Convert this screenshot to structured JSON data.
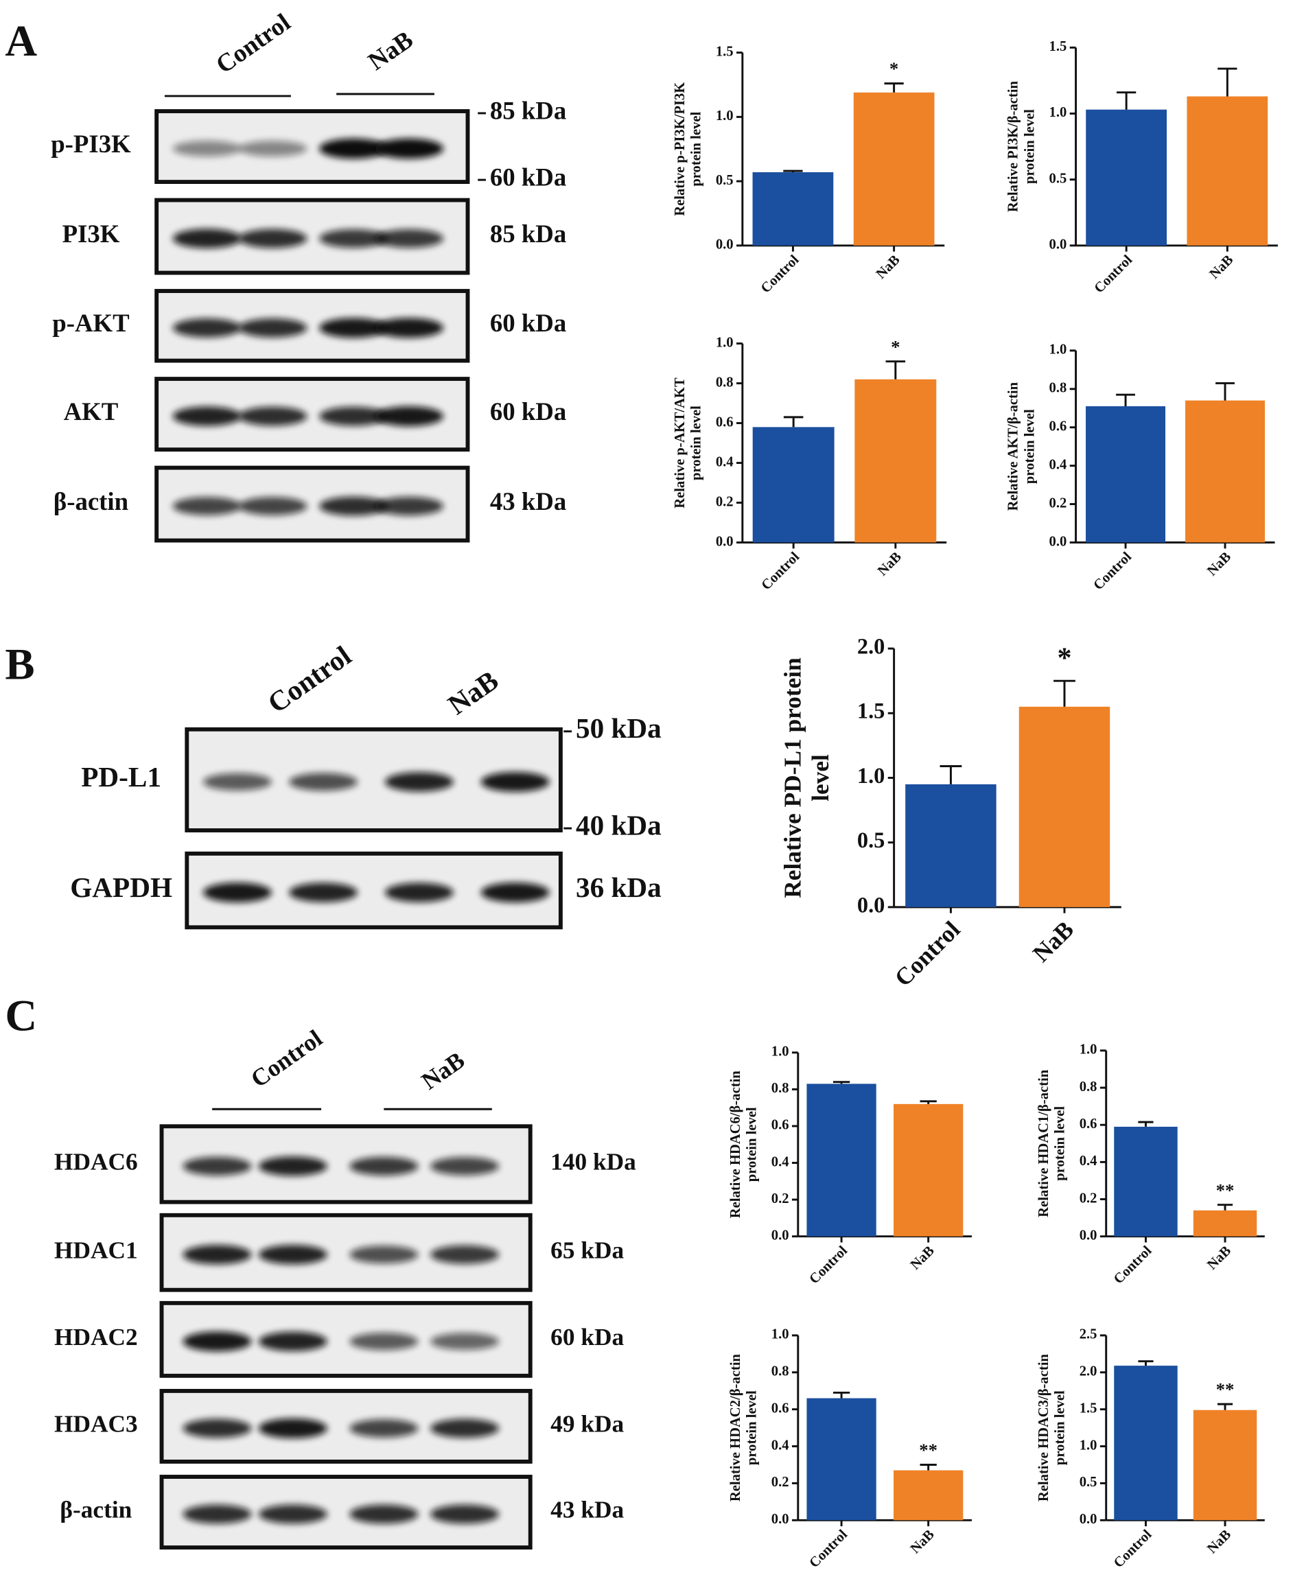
{
  "panels": [
    {
      "letter": "A",
      "groups": [
        "Control",
        "NaB"
      ],
      "blots": [
        {
          "label": "p-PI3K",
          "markers": [
            "85 kDa",
            "60 kDa"
          ]
        },
        {
          "label": "PI3K",
          "markers": [
            "85 kDa"
          ]
        },
        {
          "label": "p-AKT",
          "markers": [
            "60 kDa"
          ]
        },
        {
          "label": "AKT",
          "markers": [
            "60 kDa"
          ]
        },
        {
          "label": "β-actin",
          "markers": [
            "43 kDa"
          ]
        }
      ]
    },
    {
      "letter": "B",
      "groups": [
        "Control",
        "NaB"
      ],
      "blots": [
        {
          "label": "PD-L1",
          "markers": [
            "50 kDa",
            "40 kDa"
          ]
        },
        {
          "label": "GAPDH",
          "markers": [
            "36 kDa"
          ]
        }
      ]
    },
    {
      "letter": "C",
      "groups": [
        "Control",
        "NaB"
      ],
      "blots": [
        {
          "label": "HDAC6",
          "markers": [
            "140 kDa"
          ]
        },
        {
          "label": "HDAC1",
          "markers": [
            "65 kDa"
          ]
        },
        {
          "label": "HDAC2",
          "markers": [
            "60 kDa"
          ]
        },
        {
          "label": "HDAC3",
          "markers": [
            "49 kDa"
          ]
        },
        {
          "label": "β-actin",
          "markers": [
            "43 kDa"
          ]
        }
      ]
    }
  ],
  "chart_data": [
    {
      "type": "bar",
      "ylabel": [
        "Relative p-PI3K/PI3K",
        "protein level"
      ],
      "categories": [
        "Control",
        "NaB"
      ],
      "values": [
        0.57,
        1.19
      ],
      "errors": [
        0.01,
        0.07
      ],
      "colors": [
        "#1b4f9f",
        "#ef8227"
      ],
      "ylim": [
        0,
        1.5
      ],
      "yticks": [
        {
          "value": 0,
          "label": "0.0"
        },
        {
          "value": 0.5,
          "label": "0.5"
        },
        {
          "value": 1,
          "label": "1.0"
        },
        {
          "value": 1.5,
          "label": "1.5"
        }
      ],
      "annotations": [
        {
          "index": 1,
          "text": "*"
        }
      ]
    },
    {
      "type": "bar",
      "ylabel": [
        "Relative PI3K/β-actin",
        "protein level"
      ],
      "categories": [
        "Control",
        "NaB"
      ],
      "values": [
        1.03,
        1.13
      ],
      "errors": [
        0.13,
        0.21
      ],
      "colors": [
        "#1b4f9f",
        "#ef8227"
      ],
      "ylim": [
        0,
        1.5
      ],
      "yticks": [
        {
          "value": 0,
          "label": "0.0"
        },
        {
          "value": 0.5,
          "label": "0.5"
        },
        {
          "value": 1,
          "label": "1.0"
        },
        {
          "value": 1.5,
          "label": "1.5"
        }
      ]
    },
    {
      "type": "bar",
      "ylabel": [
        "Relative p-AKT/AKT",
        "protein level"
      ],
      "categories": [
        "Control",
        "NaB"
      ],
      "values": [
        0.58,
        0.82
      ],
      "errors": [
        0.05,
        0.09
      ],
      "colors": [
        "#1b4f9f",
        "#ef8227"
      ],
      "ylim": [
        0,
        1
      ],
      "yticks": [
        {
          "value": 0,
          "label": "0.0"
        },
        {
          "value": 0.2,
          "label": "0.2"
        },
        {
          "value": 0.4,
          "label": "0.4"
        },
        {
          "value": 0.6,
          "label": "0.6"
        },
        {
          "value": 0.8,
          "label": "0.8"
        },
        {
          "value": 1,
          "label": "1.0"
        }
      ],
      "annotations": [
        {
          "index": 1,
          "text": "*"
        }
      ]
    },
    {
      "type": "bar",
      "ylabel": [
        "Relative AKT/β-actin",
        "protein level"
      ],
      "categories": [
        "Control",
        "NaB"
      ],
      "values": [
        0.71,
        0.74
      ],
      "errors": [
        0.06,
        0.09
      ],
      "colors": [
        "#1b4f9f",
        "#ef8227"
      ],
      "ylim": [
        0,
        1
      ],
      "yticks": [
        {
          "value": 0,
          "label": "0.0"
        },
        {
          "value": 0.2,
          "label": "0.2"
        },
        {
          "value": 0.4,
          "label": "0.4"
        },
        {
          "value": 0.6,
          "label": "0.6"
        },
        {
          "value": 0.8,
          "label": "0.8"
        },
        {
          "value": 1,
          "label": "1.0"
        }
      ]
    },
    {
      "type": "bar",
      "ylabel": [
        "Relative  PD-L1 protein",
        "level"
      ],
      "categories": [
        "Control",
        "NaB"
      ],
      "values": [
        0.95,
        1.55
      ],
      "errors": [
        0.14,
        0.2
      ],
      "colors": [
        "#1b4f9f",
        "#ef8227"
      ],
      "ylim": [
        0,
        2
      ],
      "yticks": [
        {
          "value": 0,
          "label": "0.0"
        },
        {
          "value": 0.5,
          "label": "0.5"
        },
        {
          "value": 1,
          "label": "1.0"
        },
        {
          "value": 1.5,
          "label": "1.5"
        },
        {
          "value": 2,
          "label": "2.0"
        }
      ],
      "annotations": [
        {
          "index": 1,
          "text": "*"
        }
      ]
    },
    {
      "type": "bar",
      "ylabel": [
        "Relative HDAC6/β-actin",
        "protein level"
      ],
      "categories": [
        "Control",
        "NaB"
      ],
      "values": [
        0.83,
        0.72
      ],
      "errors": [
        0.01,
        0.015
      ],
      "colors": [
        "#1b4f9f",
        "#ef8227"
      ],
      "ylim": [
        0,
        1
      ],
      "yticks": [
        {
          "value": 0,
          "label": "0.0"
        },
        {
          "value": 0.2,
          "label": "0.2"
        },
        {
          "value": 0.4,
          "label": "0.4"
        },
        {
          "value": 0.6,
          "label": "0.6"
        },
        {
          "value": 0.8,
          "label": "0.8"
        },
        {
          "value": 1,
          "label": "1.0"
        }
      ]
    },
    {
      "type": "bar",
      "ylabel": [
        "Relative HDAC1/β-actin",
        "protein level"
      ],
      "categories": [
        "Control",
        "NaB"
      ],
      "values": [
        0.59,
        0.14
      ],
      "errors": [
        0.025,
        0.03
      ],
      "colors": [
        "#1b4f9f",
        "#ef8227"
      ],
      "ylim": [
        0,
        1
      ],
      "yticks": [
        {
          "value": 0,
          "label": "0.0"
        },
        {
          "value": 0.2,
          "label": "0.2"
        },
        {
          "value": 0.4,
          "label": "0.4"
        },
        {
          "value": 0.6,
          "label": "0.6"
        },
        {
          "value": 0.8,
          "label": "0.8"
        },
        {
          "value": 1,
          "label": "1.0"
        }
      ],
      "annotations": [
        {
          "index": 1,
          "text": "**"
        }
      ]
    },
    {
      "type": "bar",
      "ylabel": [
        "Relative HDAC2/β-actin",
        "protein level"
      ],
      "categories": [
        "Control",
        "NaB"
      ],
      "values": [
        0.66,
        0.27
      ],
      "errors": [
        0.03,
        0.03
      ],
      "colors": [
        "#1b4f9f",
        "#ef8227"
      ],
      "ylim": [
        0,
        1
      ],
      "yticks": [
        {
          "value": 0,
          "label": "0.0"
        },
        {
          "value": 0.2,
          "label": "0.2"
        },
        {
          "value": 0.4,
          "label": "0.4"
        },
        {
          "value": 0.6,
          "label": "0.6"
        },
        {
          "value": 0.8,
          "label": "0.8"
        },
        {
          "value": 1,
          "label": "1.0"
        }
      ],
      "annotations": [
        {
          "index": 1,
          "text": "**"
        }
      ]
    },
    {
      "type": "bar",
      "ylabel": [
        "Relative HDAC3/β-actin",
        "protein level"
      ],
      "categories": [
        "Control",
        "NaB"
      ],
      "values": [
        2.09,
        1.49
      ],
      "errors": [
        0.06,
        0.08
      ],
      "colors": [
        "#1b4f9f",
        "#ef8227"
      ],
      "ylim": [
        0,
        2.5
      ],
      "yticks": [
        {
          "value": 0,
          "label": "0.0"
        },
        {
          "value": 0.5,
          "label": "0.5"
        },
        {
          "value": 1,
          "label": "1.0"
        },
        {
          "value": 1.5,
          "label": "1.5"
        },
        {
          "value": 2,
          "label": "2.0"
        },
        {
          "value": 2.5,
          "label": "2.5"
        }
      ],
      "annotations": [
        {
          "index": 1,
          "text": "**"
        }
      ]
    }
  ]
}
